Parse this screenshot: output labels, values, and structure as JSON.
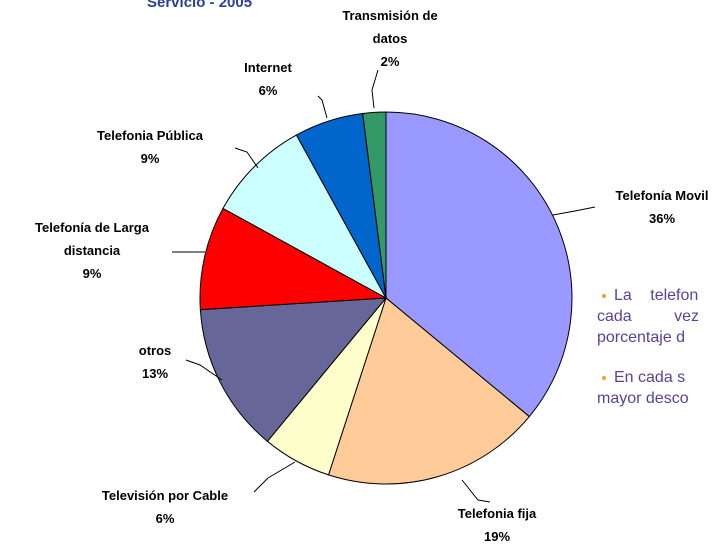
{
  "chart_data": {
    "type": "pie",
    "title": "Servicio - 2005",
    "categories": [
      "Telefonía Movil",
      "Telefonia fija",
      "Televisión por Cable",
      "otros",
      "Telefonía de Larga distancia",
      "Telefonia Pública",
      "Internet",
      "Transmisión de datos"
    ],
    "values": [
      36,
      19,
      6,
      13,
      9,
      9,
      6,
      2
    ],
    "value_labels": [
      "36%",
      "19%",
      "6%",
      "13%",
      "9%",
      "9%",
      "6%",
      "2%"
    ],
    "colors": [
      "#9999ff",
      "#ffcc99",
      "#ffffcc",
      "#666699",
      "#ff0000",
      "#ccffff",
      "#0066cc",
      "#339966"
    ]
  },
  "text": {
    "paragraphs": [
      [
        "La telefon",
        "cada vez",
        "porcentaje d"
      ],
      [
        "En cada s",
        "mayor desco"
      ]
    ]
  }
}
